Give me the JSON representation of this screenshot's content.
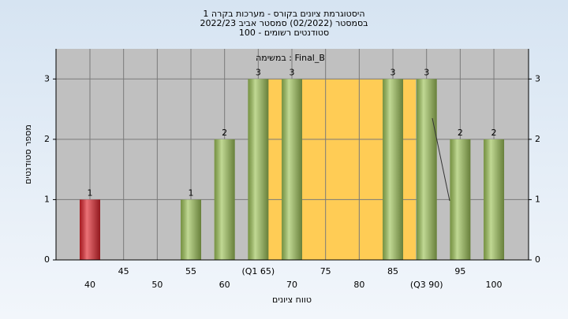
{
  "chart_data": {
    "type": "bar",
    "title": "היסטוגרמת ציונים בקורס - מערכות בקרה 1",
    "subtitle": "בסמסטר  (02/2022)  סמסטר אביב 2022/23",
    "subtitle2": "סטודנטים רשומים - 100",
    "annotation": "במשימה : Final_B",
    "x_label": "טווח ציונים",
    "y_label": "מספר סטודנטים",
    "categories": [
      "40",
      "45",
      "50",
      "55",
      "60",
      "(Q1 65)",
      "70",
      "75",
      "80",
      "85",
      "(Q3 90)",
      "95",
      "100"
    ],
    "values": [
      1,
      0,
      0,
      1,
      2,
      3,
      3,
      0,
      0,
      3,
      3,
      2,
      2
    ],
    "colors": [
      "#e0262e",
      "#9fc45a",
      "#9fc45a",
      "#9fc45a",
      "#9fc45a",
      "#9fc45a",
      "#9fc45a",
      "#9fc45a",
      "#9fc45a",
      "#9fc45a",
      "#9fc45a",
      "#9fc45a",
      "#9fc45a"
    ],
    "ylim": [
      0,
      3.5
    ],
    "yticks": [
      0,
      1,
      2,
      3
    ],
    "grid": true
  }
}
